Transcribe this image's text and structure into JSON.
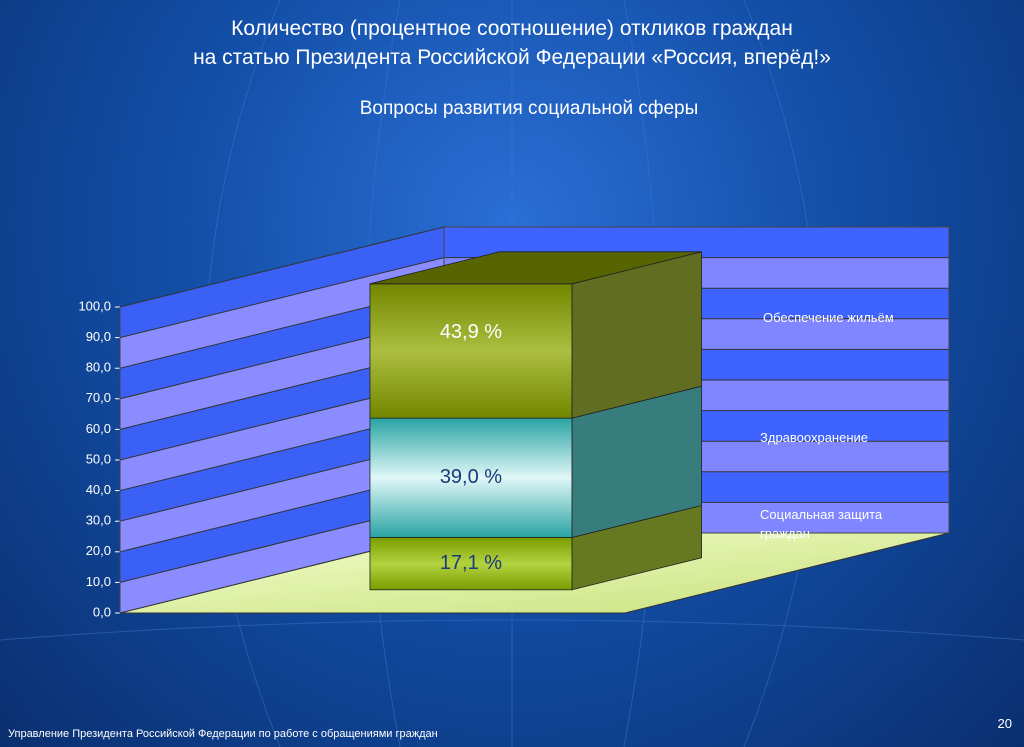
{
  "chart_data": {
    "type": "bar3d_stacked",
    "title": "Количество (процентное соотношение) откликов граждан\nна статью Президента Российской Федерации «Россия, вперёд!»",
    "subtitle": "Вопросы развития социальной сферы",
    "categories": [
      null
    ],
    "series": [
      {
        "name": "Социальная защита граждан",
        "color": "#99c400",
        "values": [
          17.1
        ],
        "value_labels": [
          "17,1 %"
        ]
      },
      {
        "name": "Здравоохранение",
        "color": "#33cccc",
        "values": [
          39.0
        ],
        "value_labels": [
          "39,0 %"
        ]
      },
      {
        "name": "Обеспечение жильём",
        "color": "#8fa800",
        "values": [
          43.9
        ],
        "value_labels": [
          "43,9 %"
        ]
      }
    ],
    "ylim": [
      0,
      100
    ],
    "yticks": [
      {
        "value": 0,
        "label": "0,0"
      },
      {
        "value": 10,
        "label": "10,0"
      },
      {
        "value": 20,
        "label": "20,0"
      },
      {
        "value": 30,
        "label": "30,0"
      },
      {
        "value": 40,
        "label": "40,0"
      },
      {
        "value": 50,
        "label": "50,0"
      },
      {
        "value": 60,
        "label": "60,0"
      },
      {
        "value": 70,
        "label": "70,0"
      },
      {
        "value": 80,
        "label": "80,0"
      },
      {
        "value": 90,
        "label": "90,0"
      },
      {
        "value": 100,
        "label": "100,0"
      }
    ],
    "grid": true,
    "footer": "Управление Президента Российской Федерации по работе с обращениями граждан",
    "page_number": 20
  }
}
